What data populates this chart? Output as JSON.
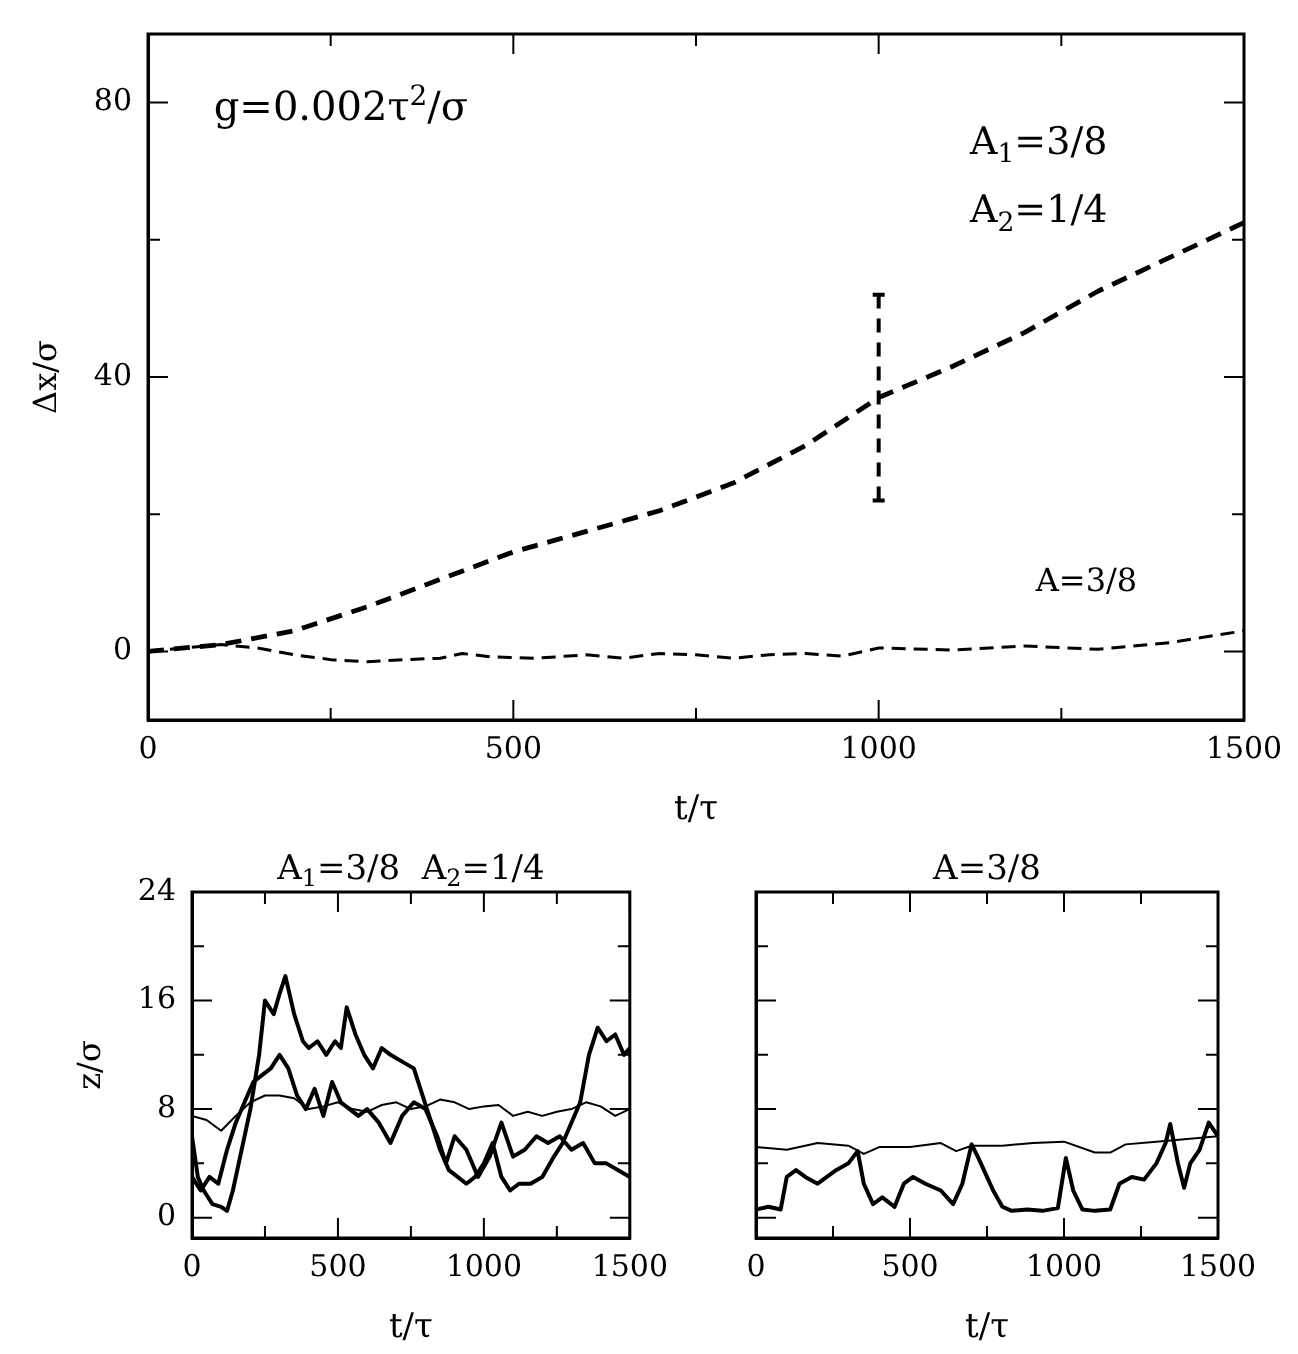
{
  "chart_data": [
    {
      "type": "line",
      "xlabel": "t/τ",
      "ylabel": "Δx/σ",
      "xlim": [
        0,
        1500
      ],
      "xticks": [
        0,
        {
          "value": 250,
          "label": null
        },
        500,
        {
          "value": 750,
          "label": null
        },
        1000,
        {
          "value": 1250,
          "label": null
        },
        1500
      ],
      "ylim": [
        -10,
        90
      ],
      "yticks": [
        0,
        {
          "value": 20,
          "label": null
        },
        40,
        {
          "value": 60,
          "label": null
        },
        80
      ],
      "grid": false,
      "legend": false,
      "marker": "none",
      "line_style": "dashed",
      "annotations": [
        "g=0.002τ$^{2}$/σ",
        "A$_{1}$=3/8",
        "A$_{2}$=1/4",
        "A=3/8"
      ],
      "series": [
        {
          "color": "#000000",
          "x": [
            0,
            100,
            200,
            300,
            400,
            500,
            600,
            700,
            800,
            900,
            1000,
            1100,
            1200,
            1300,
            1400,
            1500
          ],
          "values": [
            0,
            1,
            3,
            6.5,
            10.5,
            14.5,
            17.5,
            20.5,
            24.5,
            30,
            37,
            41.5,
            46.5,
            52.5,
            57.5,
            62.5
          ],
          "errors": [
            null,
            null,
            null,
            null,
            null,
            null,
            null,
            null,
            null,
            null,
            15,
            null,
            null,
            null,
            null,
            null
          ]
        },
        {
          "color": "#000000",
          "x": [
            0,
            100,
            150,
            200,
            250,
            300,
            350,
            400,
            430,
            470,
            530,
            600,
            650,
            700,
            750,
            800,
            850,
            900,
            950,
            1000,
            1100,
            1200,
            1300,
            1400,
            1500
          ],
          "values": [
            0,
            1,
            0.5,
            -0.5,
            -1.2,
            -1.5,
            -1.2,
            -1,
            -0.3,
            -0.8,
            -1,
            -0.5,
            -1,
            -0.3,
            -0.5,
            -1,
            -0.5,
            -0.3,
            -0.7,
            0.5,
            0.2,
            0.8,
            0.3,
            1.3,
            3
          ]
        }
      ]
    },
    {
      "type": "line",
      "title": "A$_{1}$=3/8  A$_{2}$=1/4",
      "xlabel": "t/τ",
      "ylabel": "z/σ",
      "xlim": [
        0,
        1500
      ],
      "xticks": [
        0,
        {
          "value": 250,
          "label": null
        },
        500,
        {
          "value": 750,
          "label": null
        },
        1000,
        {
          "value": 1250,
          "label": null
        },
        1500
      ],
      "ylim": [
        -1.5,
        24
      ],
      "yticks": [
        0,
        {
          "value": 4,
          "label": null
        },
        8,
        {
          "value": 12,
          "label": null
        },
        16,
        {
          "value": 20,
          "label": null
        },
        24
      ],
      "grid": false,
      "legend": false,
      "marker": "none",
      "series": [
        {
          "color": "#000000",
          "x": [
            0,
            50,
            100,
            150,
            200,
            250,
            300,
            350,
            400,
            450,
            500,
            550,
            600,
            650,
            700,
            750,
            800,
            850,
            900,
            950,
            1000,
            1050,
            1100,
            1150,
            1200,
            1250,
            1300,
            1350,
            1400,
            1450,
            1500
          ],
          "values": [
            7.5,
            7.2,
            6.4,
            7.5,
            8.5,
            9,
            9,
            8.8,
            8,
            8.2,
            8.5,
            8,
            7.8,
            8.3,
            8.5,
            8,
            8.2,
            8.7,
            8.5,
            8,
            8.2,
            8.3,
            7.5,
            7.8,
            7.5,
            7.8,
            8,
            8.5,
            8.2,
            7.5,
            8
          ]
        },
        {
          "color": "#000000",
          "x": [
            0,
            20,
            40,
            70,
            100,
            120,
            140,
            170,
            200,
            230,
            250,
            280,
            300,
            320,
            350,
            380,
            400,
            430,
            460,
            490,
            510,
            530,
            560,
            590,
            620,
            650,
            680,
            720,
            760,
            790,
            820,
            850,
            880,
            910,
            940,
            970,
            1000,
            1030,
            1060,
            1090,
            1120,
            1160,
            1200,
            1240,
            1270,
            1300,
            1330,
            1360,
            1390,
            1420,
            1450,
            1480,
            1500
          ],
          "values": [
            6,
            3,
            2,
            1,
            0.8,
            0.5,
            2,
            5,
            8,
            12,
            16,
            15,
            16.5,
            17.8,
            15,
            13,
            12.5,
            13,
            12,
            13,
            12.5,
            15.5,
            13.5,
            12,
            11,
            12.5,
            12,
            11.5,
            11,
            9,
            7,
            5,
            3.5,
            3,
            2.5,
            3,
            4,
            5.5,
            3,
            2,
            2.5,
            2.5,
            3,
            4.5,
            5.5,
            7,
            8.5,
            12,
            14,
            13,
            13.5,
            12,
            12.5
          ]
        },
        {
          "color": "#000000",
          "x": [
            0,
            30,
            60,
            90,
            120,
            150,
            180,
            210,
            240,
            270,
            300,
            330,
            360,
            390,
            420,
            450,
            480,
            510,
            540,
            570,
            600,
            640,
            680,
            720,
            760,
            800,
            840,
            870,
            900,
            940,
            980,
            1020,
            1060,
            1100,
            1140,
            1180,
            1220,
            1260,
            1300,
            1340,
            1380,
            1420,
            1460,
            1500
          ],
          "values": [
            3,
            2,
            3,
            2.5,
            5,
            7,
            8.5,
            10,
            10.5,
            11,
            12,
            11,
            9,
            8,
            9.5,
            7.5,
            10,
            8.5,
            8,
            7.5,
            8,
            7,
            5.5,
            7.5,
            8.5,
            8,
            6,
            4,
            6,
            5,
            3,
            4.5,
            7,
            4.5,
            5,
            6,
            5.5,
            6,
            5,
            5.5,
            4,
            4,
            3.5,
            3
          ]
        }
      ]
    },
    {
      "type": "line",
      "title": "A=3/8",
      "xlabel": "t/τ",
      "xlim": [
        0,
        1500
      ],
      "xticks": [
        0,
        {
          "value": 250,
          "label": null
        },
        500,
        {
          "value": 750,
          "label": null
        },
        1000,
        {
          "value": 1250,
          "label": null
        },
        1500
      ],
      "ylim": [
        -1.5,
        24
      ],
      "yticks": [
        0,
        {
          "value": 4,
          "label": null
        },
        8,
        {
          "value": 12,
          "label": null
        },
        16,
        {
          "value": 20,
          "label": null
        },
        24
      ],
      "tick_labels": "x",
      "grid": false,
      "legend": false,
      "marker": "none",
      "series": [
        {
          "color": "#000000",
          "x": [
            0,
            100,
            200,
            300,
            350,
            400,
            500,
            600,
            650,
            700,
            800,
            900,
            1000,
            1100,
            1150,
            1200,
            1300,
            1400,
            1500
          ],
          "values": [
            5.2,
            5,
            5.5,
            5.3,
            4.7,
            5.2,
            5.2,
            5.5,
            4.9,
            5.3,
            5.3,
            5.5,
            5.6,
            4.8,
            4.8,
            5.4,
            5.6,
            5.8,
            6
          ]
        },
        {
          "color": "#000000",
          "x": [
            0,
            40,
            80,
            100,
            130,
            160,
            200,
            230,
            260,
            300,
            330,
            350,
            380,
            410,
            450,
            480,
            510,
            550,
            600,
            640,
            670,
            700,
            720,
            740,
            770,
            800,
            830,
            880,
            930,
            980,
            1006,
            1030,
            1060,
            1100,
            1150,
            1180,
            1220,
            1260,
            1300,
            1330,
            1345,
            1370,
            1390,
            1410,
            1440,
            1470,
            1500
          ],
          "values": [
            0.6,
            0.8,
            0.6,
            3,
            3.5,
            3,
            2.5,
            3,
            3.5,
            4,
            4.9,
            2.5,
            1,
            1.5,
            0.8,
            2.5,
            3,
            2.5,
            2,
            1,
            2.5,
            5.4,
            4.5,
            3.5,
            2,
            0.8,
            0.5,
            0.6,
            0.5,
            0.7,
            4.4,
            2,
            0.6,
            0.5,
            0.6,
            2.5,
            3,
            2.8,
            4,
            5.5,
            6.9,
            4,
            2.2,
            4,
            5,
            7,
            6
          ]
        }
      ]
    }
  ]
}
